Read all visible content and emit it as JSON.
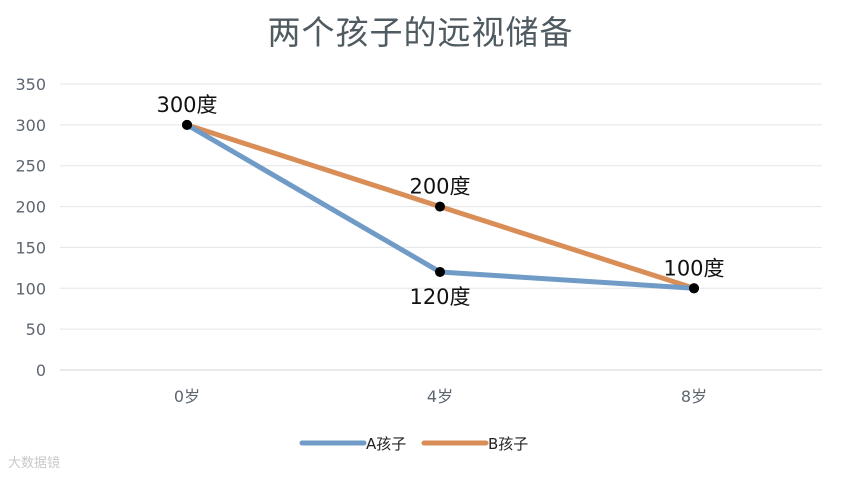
{
  "chart_data": {
    "type": "line",
    "title": "两个孩子的远视储备",
    "categories": [
      "0岁",
      "4岁",
      "8岁"
    ],
    "ylim": [
      0,
      350
    ],
    "yticks": [
      0,
      50,
      100,
      150,
      200,
      250,
      300,
      350
    ],
    "grid": true,
    "legend_position": "bottom",
    "series": [
      {
        "name": "A孩子",
        "color": "#6f9bc6",
        "values": [
          300,
          120,
          100
        ]
      },
      {
        "name": "B孩子",
        "color": "#d98e57",
        "values": [
          300,
          200,
          100
        ]
      }
    ],
    "point_color": "#000000",
    "annotations": [
      {
        "text": "300度",
        "category": "0岁",
        "value": 300,
        "place": "above"
      },
      {
        "text": "200度",
        "category": "4岁",
        "value": 200,
        "place": "above"
      },
      {
        "text": "120度",
        "category": "4岁",
        "value": 120,
        "place": "below"
      },
      {
        "text": "100度",
        "category": "8岁",
        "value": 100,
        "place": "above"
      }
    ]
  },
  "watermark": "大数据镜"
}
